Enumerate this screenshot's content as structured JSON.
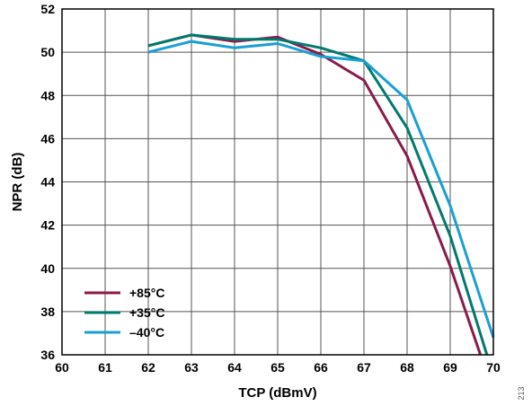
{
  "figure_id": "213",
  "chart_data": {
    "type": "line",
    "xlabel": "TCP (dBmV)",
    "ylabel": "NPR (dB)",
    "xlim": [
      60,
      70
    ],
    "ylim": [
      36,
      52
    ],
    "x_ticks": [
      60,
      61,
      62,
      63,
      64,
      65,
      66,
      67,
      68,
      69,
      70
    ],
    "y_ticks": [
      36,
      38,
      40,
      42,
      44,
      46,
      48,
      50,
      52
    ],
    "grid": true,
    "legend_position": "bottom-left",
    "series": [
      {
        "name": "+85°C",
        "color": "#8b1a4a",
        "x": [
          62,
          63,
          64,
          65,
          66,
          67,
          68,
          69,
          69.7
        ],
        "y": [
          50.3,
          50.8,
          50.5,
          50.7,
          49.9,
          48.7,
          45.2,
          40.1,
          36.0
        ]
      },
      {
        "name": "+35°C",
        "color": "#007a6e",
        "x": [
          62,
          63,
          64,
          65,
          66,
          67,
          68,
          69,
          69.85
        ],
        "y": [
          50.3,
          50.8,
          50.6,
          50.6,
          50.2,
          49.6,
          46.5,
          41.5,
          36.0
        ]
      },
      {
        "name": "–40°C",
        "color": "#1a9fd4",
        "x": [
          62,
          63,
          64,
          65,
          66,
          67,
          68,
          69,
          70
        ],
        "y": [
          50.0,
          50.5,
          50.2,
          50.4,
          49.8,
          49.6,
          47.8,
          42.9,
          36.8
        ]
      }
    ]
  }
}
